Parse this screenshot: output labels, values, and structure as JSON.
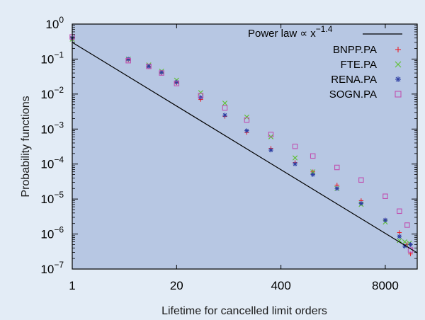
{
  "chart_data": {
    "type": "scatter",
    "title": "",
    "xlabel": "Lifetime for cancelled limit orders",
    "ylabel": "Probability functions",
    "x_scale": "log",
    "y_scale": "log",
    "xlim": [
      1,
      20000
    ],
    "ylim": [
      1e-07,
      1
    ],
    "x_ticks": [
      {
        "value": 1,
        "label": "1"
      },
      {
        "value": 20,
        "label": "20"
      },
      {
        "value": 400,
        "label": "400"
      },
      {
        "value": 8000,
        "label": "8000"
      }
    ],
    "y_ticks": [
      {
        "value": 1,
        "base": "10",
        "exp": "0"
      },
      {
        "value": 0.1,
        "base": "10",
        "exp": "−1"
      },
      {
        "value": 0.01,
        "base": "10",
        "exp": "−2"
      },
      {
        "value": 0.001,
        "base": "10",
        "exp": "−3"
      },
      {
        "value": 0.0001,
        "base": "10",
        "exp": "−4"
      },
      {
        "value": 1e-05,
        "base": "10",
        "exp": "−5"
      },
      {
        "value": 1e-06,
        "base": "10",
        "exp": "−6"
      },
      {
        "value": 1e-07,
        "base": "10",
        "exp": "−7"
      }
    ],
    "grid": false,
    "legend_position": "top-right",
    "legend": {
      "power_law_label": "Power law ∝ x",
      "power_law_exponent": "−1.4"
    },
    "power_law": {
      "exponent": -1.4,
      "points": [
        [
          1,
          0.3
        ],
        [
          20000,
          2.9e-07
        ]
      ]
    },
    "series": [
      {
        "name": "BNPP.PA",
        "marker": "plus",
        "color": "#e8202a",
        "points": [
          [
            1,
            0.42
          ],
          [
            5,
            0.095
          ],
          [
            9,
            0.06
          ],
          [
            13,
            0.04
          ],
          [
            20,
            0.021
          ],
          [
            40,
            0.007
          ],
          [
            80,
            0.0023
          ],
          [
            150,
            0.0008
          ],
          [
            300,
            0.00028
          ],
          [
            600,
            0.00011
          ],
          [
            1000,
            6e-05
          ],
          [
            2000,
            2.5e-05
          ],
          [
            4000,
            9e-06
          ],
          [
            8000,
            2.5e-06
          ],
          [
            12000,
            1.1e-06
          ],
          [
            15000,
            5e-07
          ],
          [
            16500,
            2.7e-07
          ]
        ]
      },
      {
        "name": "FTE.PA",
        "marker": "x",
        "color": "#5cbf2e",
        "points": [
          [
            1,
            0.37
          ],
          [
            5,
            0.1
          ],
          [
            9,
            0.068
          ],
          [
            13,
            0.045
          ],
          [
            20,
            0.025
          ],
          [
            40,
            0.011
          ],
          [
            80,
            0.0055
          ],
          [
            150,
            0.0022
          ],
          [
            300,
            0.0006
          ],
          [
            600,
            0.00015
          ],
          [
            1000,
            6e-05
          ],
          [
            2000,
            2e-05
          ],
          [
            4000,
            7e-06
          ],
          [
            8000,
            2.2e-06
          ],
          [
            12000,
            6.5e-07
          ],
          [
            14000,
            6e-07
          ],
          [
            16000,
            5.5e-07
          ]
        ]
      },
      {
        "name": "RENA.PA",
        "marker": "star",
        "color": "#2e3fa3",
        "points": [
          [
            1,
            0.4
          ],
          [
            5,
            0.1
          ],
          [
            9,
            0.062
          ],
          [
            13,
            0.042
          ],
          [
            20,
            0.022
          ],
          [
            40,
            0.008
          ],
          [
            80,
            0.0025
          ],
          [
            150,
            0.0009
          ],
          [
            300,
            0.00025
          ],
          [
            600,
            0.0001
          ],
          [
            1000,
            5e-05
          ],
          [
            2000,
            2e-05
          ],
          [
            4000,
            7.5e-06
          ],
          [
            8000,
            2.5e-06
          ],
          [
            12000,
            8.5e-07
          ],
          [
            14000,
            4.5e-07
          ],
          [
            16500,
            5e-07
          ]
        ]
      },
      {
        "name": "SOGN.PA",
        "marker": "square",
        "color": "#c050b0",
        "points": [
          [
            1,
            0.43
          ],
          [
            5,
            0.09
          ],
          [
            9,
            0.062
          ],
          [
            13,
            0.04
          ],
          [
            20,
            0.02
          ],
          [
            40,
            0.009
          ],
          [
            80,
            0.004
          ],
          [
            150,
            0.0018
          ],
          [
            300,
            0.0007
          ],
          [
            600,
            0.00032
          ],
          [
            1000,
            0.00017
          ],
          [
            2000,
            8e-05
          ],
          [
            4000,
            3.5e-05
          ],
          [
            8000,
            1.2e-05
          ],
          [
            12000,
            4.5e-06
          ],
          [
            15000,
            1.8e-06
          ],
          [
            16500,
            3.5e-07
          ]
        ]
      }
    ]
  }
}
